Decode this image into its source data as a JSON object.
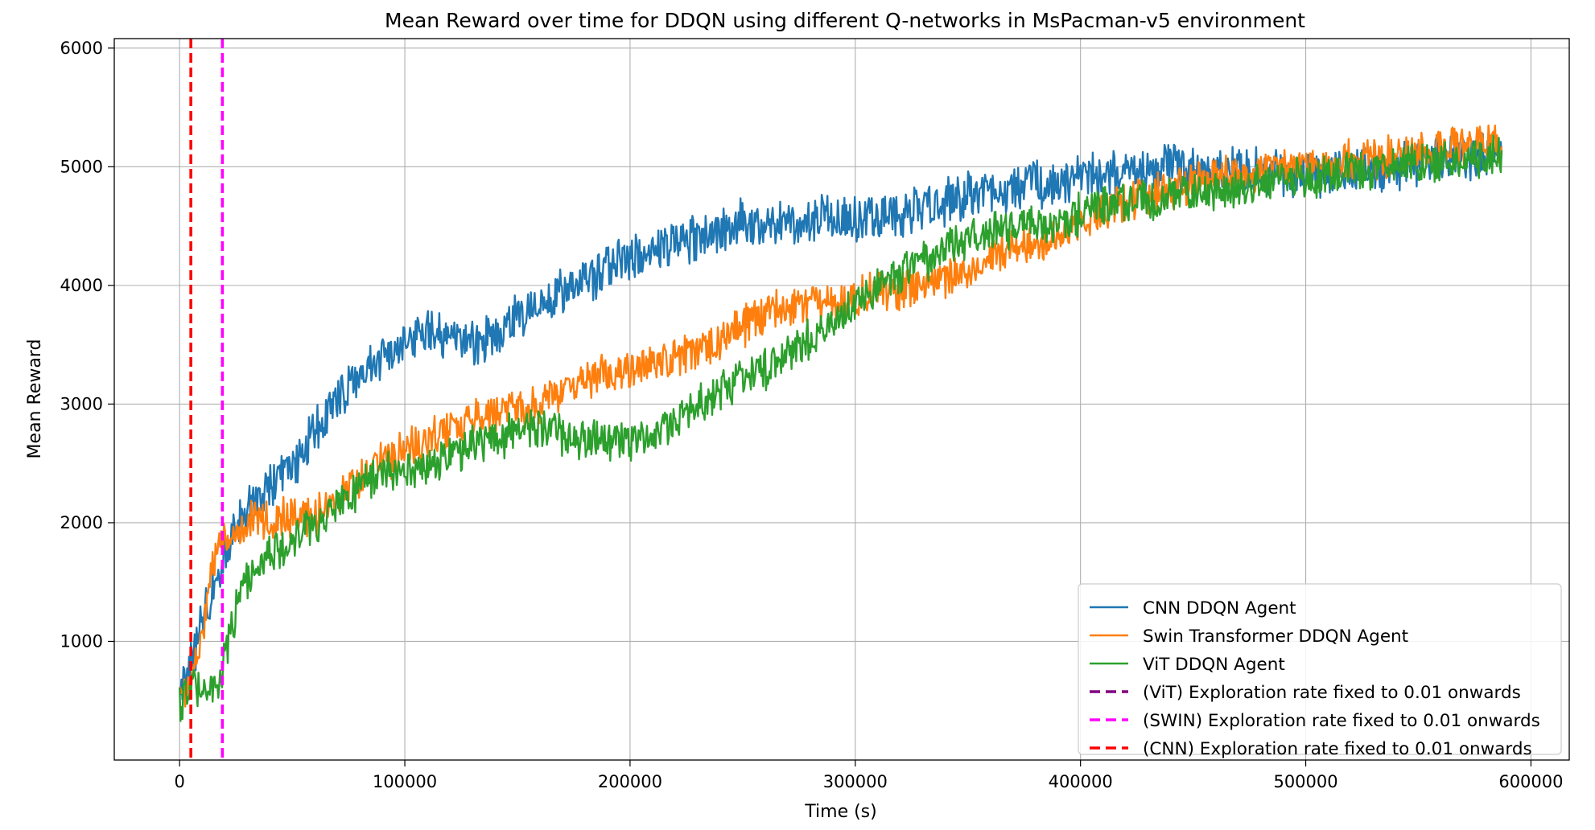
{
  "chart_data": {
    "type": "line",
    "title": "Mean Reward over time for DDQN using different Q-networks in MsPacman-v5 environment",
    "xlabel": "Time (s)",
    "ylabel": "Mean Reward",
    "xlim": [
      -29000,
      617000
    ],
    "ylim": [
      0,
      6080
    ],
    "x_ticks": [
      0,
      100000,
      200000,
      300000,
      400000,
      500000,
      600000
    ],
    "x_tick_labels": [
      "0",
      "100000",
      "200000",
      "300000",
      "400000",
      "500000",
      "600000"
    ],
    "y_ticks": [
      1000,
      2000,
      3000,
      4000,
      5000,
      6000
    ],
    "y_tick_labels": [
      "1000",
      "2000",
      "3000",
      "4000",
      "5000",
      "6000"
    ],
    "grid": true,
    "legend_position": "lower right",
    "series": [
      {
        "name": "CNN DDQN Agent",
        "color": "#1f77b4",
        "noise": 170,
        "x": [
          0,
          2000,
          5000,
          8000,
          10000,
          15000,
          20000,
          25000,
          30000,
          40000,
          50000,
          55000,
          60000,
          70000,
          80000,
          90000,
          100000,
          110000,
          120000,
          130000,
          140000,
          150000,
          160000,
          170000,
          180000,
          190000,
          200000,
          210000,
          220000,
          230000,
          240000,
          250000,
          260000,
          270000,
          280000,
          290000,
          300000,
          310000,
          320000,
          330000,
          340000,
          350000,
          360000,
          370000,
          380000,
          390000,
          400000,
          420000,
          440000,
          460000,
          480000,
          500000,
          520000,
          540000,
          560000,
          580000,
          587000
        ],
        "y": [
          500,
          650,
          800,
          1000,
          1150,
          1450,
          1750,
          1950,
          2100,
          2300,
          2450,
          2600,
          2800,
          3050,
          3250,
          3400,
          3500,
          3600,
          3550,
          3500,
          3600,
          3750,
          3850,
          3950,
          4050,
          4150,
          4250,
          4300,
          4350,
          4400,
          4450,
          4550,
          4500,
          4500,
          4550,
          4600,
          4550,
          4550,
          4600,
          4650,
          4700,
          4750,
          4800,
          4800,
          4850,
          4850,
          4900,
          4950,
          5000,
          5000,
          4950,
          4950,
          4950,
          5000,
          5050,
          5100,
          5100
        ]
      },
      {
        "name": "Swin Transformer DDQN Agent",
        "color": "#ff7f0e",
        "noise": 150,
        "x": [
          0,
          5000,
          10000,
          15000,
          18000,
          20000,
          30000,
          40000,
          50000,
          60000,
          70000,
          80000,
          90000,
          100000,
          110000,
          120000,
          130000,
          140000,
          150000,
          160000,
          170000,
          180000,
          190000,
          200000,
          210000,
          220000,
          230000,
          240000,
          250000,
          260000,
          270000,
          280000,
          290000,
          300000,
          310000,
          320000,
          330000,
          340000,
          350000,
          360000,
          370000,
          380000,
          390000,
          400000,
          420000,
          440000,
          460000,
          480000,
          500000,
          520000,
          540000,
          560000,
          580000,
          587000
        ],
        "y": [
          500,
          650,
          1100,
          1650,
          1800,
          1850,
          2000,
          2050,
          2050,
          2050,
          2200,
          2350,
          2500,
          2600,
          2700,
          2800,
          2850,
          2900,
          2950,
          3000,
          3100,
          3200,
          3250,
          3300,
          3350,
          3400,
          3450,
          3550,
          3650,
          3750,
          3800,
          3850,
          3850,
          3900,
          3950,
          3950,
          4000,
          4050,
          4100,
          4250,
          4300,
          4350,
          4450,
          4550,
          4700,
          4800,
          4900,
          4950,
          5000,
          5050,
          5100,
          5150,
          5200,
          5150
        ]
      },
      {
        "name": "ViT DDQN Agent",
        "color": "#2ca02c",
        "noise": 150,
        "x": [
          0,
          5000,
          10000,
          15000,
          18000,
          20000,
          25000,
          30000,
          40000,
          50000,
          60000,
          70000,
          80000,
          90000,
          100000,
          110000,
          120000,
          130000,
          140000,
          150000,
          160000,
          170000,
          180000,
          190000,
          200000,
          210000,
          220000,
          230000,
          240000,
          250000,
          260000,
          270000,
          280000,
          290000,
          300000,
          310000,
          320000,
          330000,
          340000,
          350000,
          360000,
          370000,
          380000,
          390000,
          400000,
          420000,
          440000,
          460000,
          480000,
          500000,
          520000,
          540000,
          560000,
          580000,
          587000
        ],
        "y": [
          450,
          600,
          650,
          650,
          700,
          850,
          1250,
          1550,
          1750,
          1850,
          2000,
          2150,
          2300,
          2400,
          2450,
          2450,
          2550,
          2650,
          2700,
          2750,
          2800,
          2750,
          2700,
          2700,
          2700,
          2750,
          2850,
          3000,
          3100,
          3200,
          3300,
          3400,
          3550,
          3700,
          3850,
          4000,
          4100,
          4200,
          4300,
          4400,
          4450,
          4500,
          4500,
          4500,
          4600,
          4700,
          4750,
          4800,
          4850,
          4900,
          4950,
          5000,
          5050,
          5100,
          5100
        ]
      }
    ],
    "vlines": [
      {
        "label": "(ViT) Exploration rate fixed to 0.01 onwards",
        "x": 19000,
        "color": "#800080",
        "draw": false
      },
      {
        "label": "(SWIN) Exploration rate fixed to 0.01 onwards",
        "x": 19000,
        "color": "#ff00ff",
        "draw": true
      },
      {
        "label": "(CNN) Exploration rate fixed to 0.01 onwards",
        "x": 5000,
        "color": "#ff0000",
        "draw": true
      }
    ]
  }
}
